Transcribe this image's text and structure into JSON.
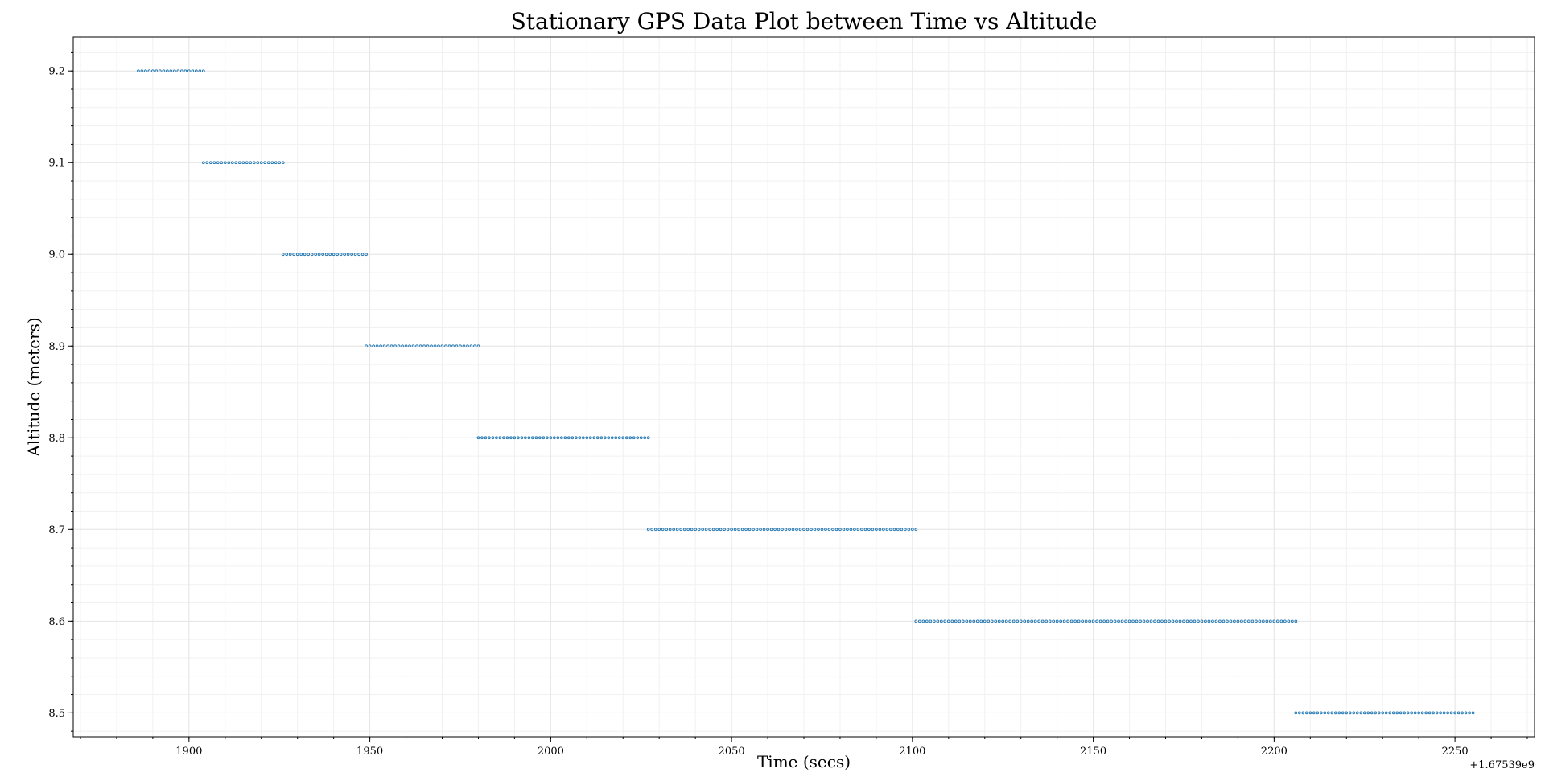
{
  "chart_data": {
    "type": "scatter",
    "title": "Stationary GPS Data Plot between Time vs Altitude",
    "xlabel": "Time (secs)",
    "ylabel": "Altitude (meters)",
    "x_offset_label": "+1.67539e9",
    "xlim": [
      1868,
      2272
    ],
    "ylim": [
      8.474,
      9.237
    ],
    "x_ticks": [
      1900,
      1950,
      2000,
      2050,
      2100,
      2150,
      2200,
      2250
    ],
    "x_tick_labels": [
      "1900",
      "1950",
      "2000",
      "2050",
      "2100",
      "2150",
      "2200",
      "2250"
    ],
    "y_ticks": [
      8.5,
      8.6,
      8.7,
      8.8,
      8.9,
      9.0,
      9.1,
      9.2
    ],
    "y_tick_labels": [
      "8.5",
      "8.6",
      "8.7",
      "8.8",
      "8.9",
      "9.0",
      "9.1",
      "9.2"
    ],
    "grid": true,
    "marker_color": "#1f77b4",
    "series": [
      {
        "segments": [
          {
            "y": 9.2,
            "x_start": 1886,
            "x_end": 1904
          },
          {
            "y": 9.1,
            "x_start": 1904,
            "x_end": 1926
          },
          {
            "y": 9.0,
            "x_start": 1926,
            "x_end": 1949
          },
          {
            "y": 8.9,
            "x_start": 1949,
            "x_end": 1980
          },
          {
            "y": 8.8,
            "x_start": 1980,
            "x_end": 2027
          },
          {
            "y": 8.7,
            "x_start": 2027,
            "x_end": 2101
          },
          {
            "y": 8.6,
            "x_start": 2101,
            "x_end": 2206
          },
          {
            "y": 8.5,
            "x_start": 2206,
            "x_end": 2255
          }
        ],
        "sample_interval": 1
      }
    ]
  }
}
